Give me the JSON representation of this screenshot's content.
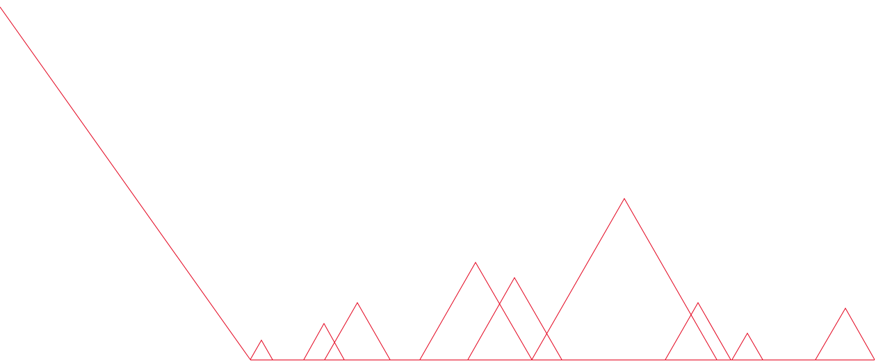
{
  "drawing": {
    "stroke_color": "#e3001b",
    "background_color": "#ffffff"
  }
}
